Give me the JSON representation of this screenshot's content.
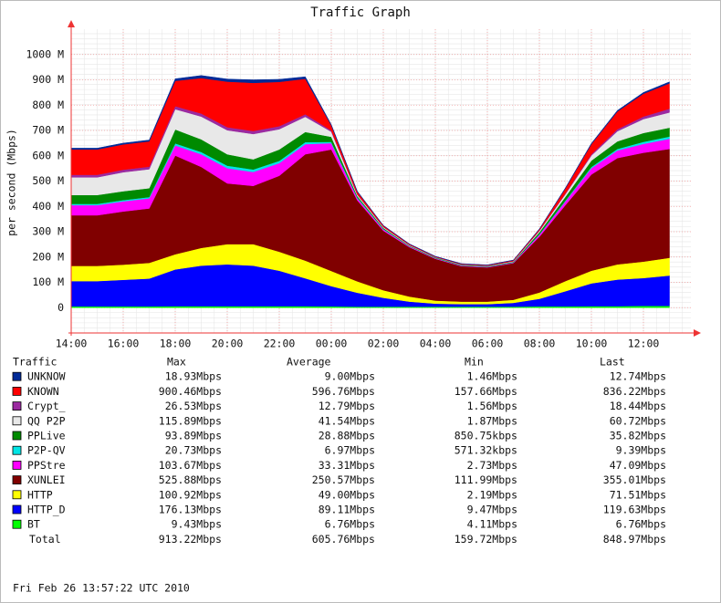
{
  "chart_data": {
    "type": "stacked-area",
    "title": "Traffic Graph",
    "y_label": "per second (Mbps)",
    "categories": [
      "14:00",
      null,
      "16:00",
      null,
      "18:00",
      null,
      "20:00",
      null,
      "22:00",
      null,
      "00:00",
      null,
      "02:00",
      null,
      "04:00",
      null,
      "06:00",
      null,
      "08:00",
      null,
      "10:00",
      null,
      "12:00",
      null
    ],
    "ylim": [
      -100,
      1100
    ],
    "yticks": [
      0,
      {
        "value": 100,
        "label": "100 M"
      },
      {
        "value": 200,
        "label": "200 M"
      },
      {
        "value": 300,
        "label": "300 M"
      },
      {
        "value": 400,
        "label": "400 M"
      },
      {
        "value": 500,
        "label": "500 M"
      },
      {
        "value": 600,
        "label": "600 M"
      },
      {
        "value": 700,
        "label": "700 M"
      },
      {
        "value": 800,
        "label": "800 M"
      },
      {
        "value": 900,
        "label": "900 M"
      },
      {
        "value": 1000,
        "label": "1000 M"
      }
    ],
    "grid": true,
    "series": [
      {
        "name": "UNKNOW",
        "color": "#002a97",
        "values": [
          5,
          5,
          5,
          5,
          8,
          10,
          10,
          12,
          10,
          8,
          3,
          2,
          1,
          1,
          1,
          1,
          1,
          1,
          1,
          2,
          3,
          4,
          5,
          6
        ]
      },
      {
        "name": "KNOWN",
        "color": "#ff0000",
        "values": [
          100,
          100,
          100,
          100,
          100,
          140,
          180,
          190,
          175,
          140,
          20,
          10,
          5,
          3,
          2,
          2,
          2,
          3,
          5,
          20,
          40,
          70,
          90,
          100
        ]
      },
      {
        "name": "Crypt_",
        "color": "#9b2aa0",
        "values": [
          10,
          10,
          10,
          10,
          12,
          12,
          12,
          12,
          12,
          10,
          5,
          2,
          1,
          1,
          1,
          1,
          1,
          1,
          2,
          3,
          5,
          8,
          10,
          15
        ]
      },
      {
        "name": "QQ P2P",
        "color": "#e8e8e8",
        "values": [
          70,
          70,
          75,
          75,
          80,
          90,
          95,
          100,
          80,
          60,
          20,
          5,
          3,
          2,
          1,
          1,
          1,
          2,
          5,
          10,
          20,
          40,
          55,
          60
        ]
      },
      {
        "name": "PPLive",
        "color": "#008a00",
        "values": [
          35,
          35,
          35,
          35,
          55,
          50,
          45,
          40,
          45,
          40,
          20,
          6,
          4,
          2,
          2,
          2,
          2,
          2,
          8,
          15,
          25,
          30,
          35,
          35
        ]
      },
      {
        "name": "P2P-QV",
        "color": "#00e5e5",
        "values": [
          5,
          5,
          5,
          5,
          8,
          9,
          10,
          10,
          9,
          8,
          5,
          3,
          2,
          1,
          1,
          1,
          1,
          1,
          2,
          3,
          5,
          6,
          8,
          9
        ]
      },
      {
        "name": "PPStre",
        "color": "#ff00ff",
        "values": [
          40,
          40,
          40,
          40,
          40,
          50,
          60,
          55,
          50,
          40,
          25,
          8,
          5,
          3,
          2,
          2,
          2,
          2,
          8,
          15,
          25,
          30,
          35,
          40
        ]
      },
      {
        "name": "XUNLEI",
        "color": "#800000",
        "values": [
          200,
          200,
          210,
          215,
          390,
          320,
          240,
          230,
          300,
          420,
          480,
          320,
          235,
          195,
          165,
          140,
          135,
          145,
          220,
          300,
          380,
          420,
          430,
          430
        ]
      },
      {
        "name": "HTTP",
        "color": "#ffff00",
        "values": [
          60,
          60,
          60,
          62,
          60,
          70,
          80,
          85,
          75,
          70,
          60,
          45,
          30,
          20,
          12,
          10,
          10,
          12,
          25,
          40,
          50,
          60,
          65,
          70
        ]
      },
      {
        "name": "HTTP_D",
        "color": "#0000ff",
        "values": [
          100,
          100,
          105,
          110,
          145,
          160,
          165,
          160,
          140,
          110,
          80,
          55,
          35,
          20,
          12,
          10,
          10,
          15,
          30,
          60,
          90,
          105,
          110,
          120
        ]
      },
      {
        "name": "BT",
        "color": "#00ff00",
        "values": [
          5,
          5,
          5,
          5,
          6,
          6,
          6,
          6,
          6,
          6,
          5,
          4,
          4,
          4,
          4,
          4,
          4,
          4,
          5,
          5,
          6,
          6,
          7,
          7
        ]
      }
    ],
    "table": {
      "columns": [
        "Traffic",
        "Max",
        "Average",
        "Min",
        "Last"
      ],
      "stats": [
        [
          "18.93Mbps",
          "9.00Mbps",
          "1.46Mbps",
          "12.74Mbps"
        ],
        [
          "900.46Mbps",
          "596.76Mbps",
          "157.66Mbps",
          "836.22Mbps"
        ],
        [
          "26.53Mbps",
          "12.79Mbps",
          "1.56Mbps",
          "18.44Mbps"
        ],
        [
          "115.89Mbps",
          "41.54Mbps",
          "1.87Mbps",
          "60.72Mbps"
        ],
        [
          "93.89Mbps",
          "28.88Mbps",
          "850.75kbps",
          "35.82Mbps"
        ],
        [
          "20.73Mbps",
          "6.97Mbps",
          "571.32kbps",
          "9.39Mbps"
        ],
        [
          "103.67Mbps",
          "33.31Mbps",
          "2.73Mbps",
          "47.09Mbps"
        ],
        [
          "525.88Mbps",
          "250.57Mbps",
          "111.99Mbps",
          "355.01Mbps"
        ],
        [
          "100.92Mbps",
          "49.00Mbps",
          "2.19Mbps",
          "71.51Mbps"
        ],
        [
          "176.13Mbps",
          "89.11Mbps",
          "9.47Mbps",
          "119.63Mbps"
        ],
        [
          "9.43Mbps",
          "6.76Mbps",
          "4.11Mbps",
          "6.76Mbps"
        ]
      ],
      "total": {
        "name": "Total",
        "stats": [
          "913.22Mbps",
          "605.76Mbps",
          "159.72Mbps",
          "848.97Mbps"
        ]
      }
    },
    "footer": "Fri Feb 26 13:57:22 UTC 2010"
  }
}
